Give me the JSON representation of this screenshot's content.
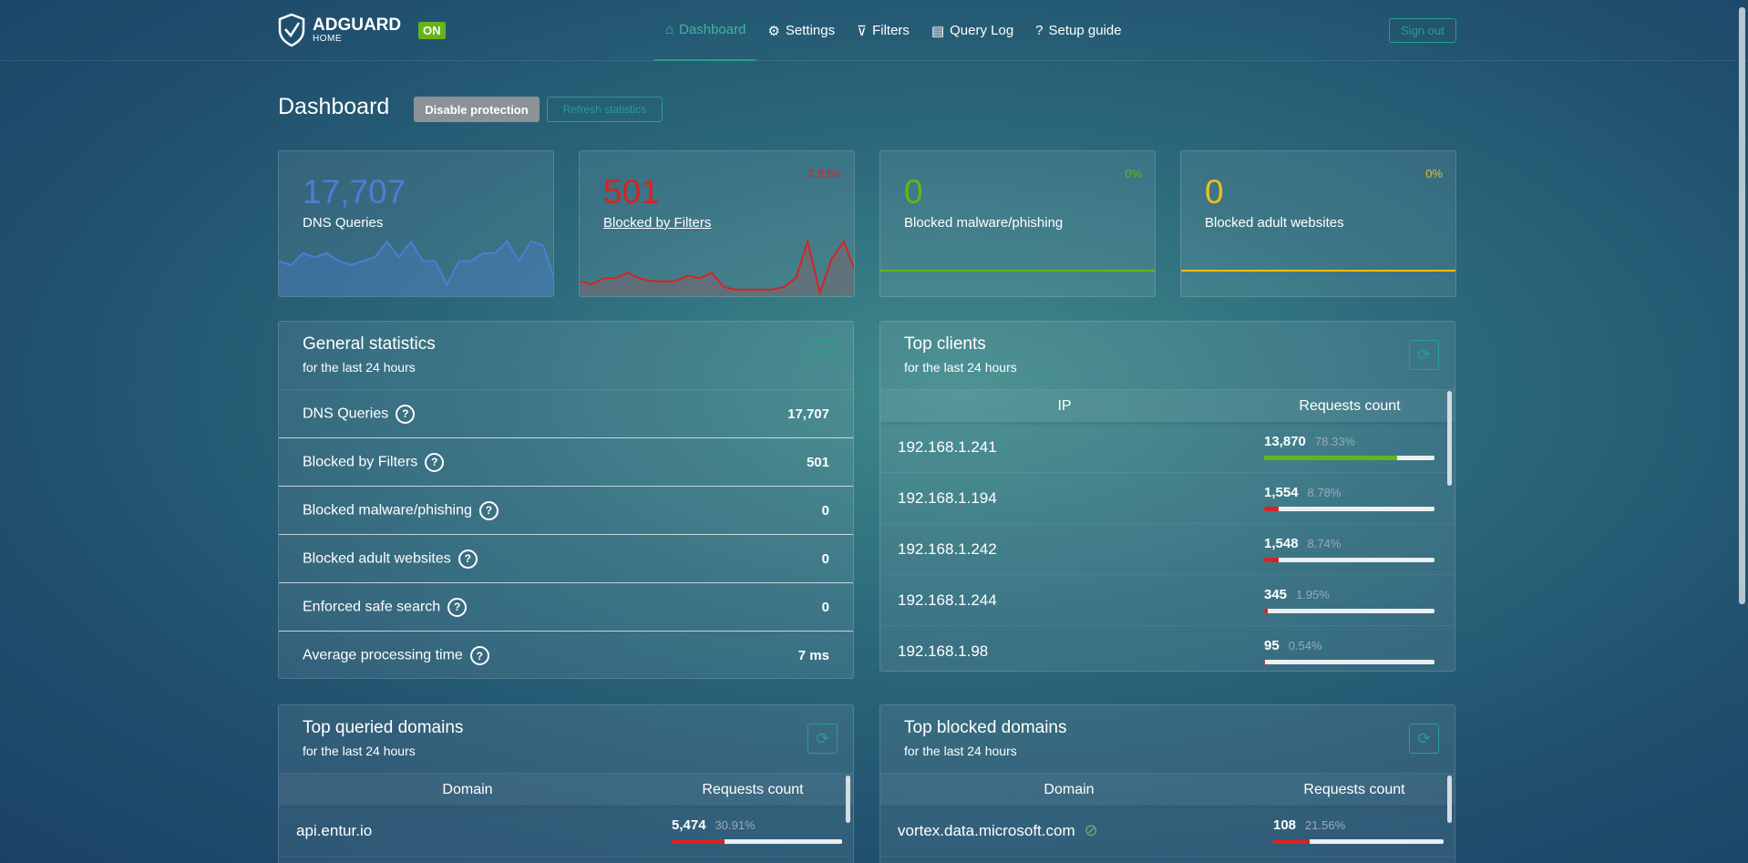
{
  "header": {
    "brand": "ADGUARD",
    "brand_sub": "HOME",
    "status_badge": "ON",
    "nav": [
      {
        "label": "Dashboard",
        "icon": "home-icon",
        "active": true
      },
      {
        "label": "Settings",
        "icon": "gear-icon"
      },
      {
        "label": "Filters",
        "icon": "filter-icon"
      },
      {
        "label": "Query Log",
        "icon": "document-icon"
      },
      {
        "label": "Setup guide",
        "icon": "help-icon"
      }
    ],
    "sign_out": "Sign out"
  },
  "page": {
    "title": "Dashboard",
    "disable_protection": "Disable protection",
    "refresh_statistics": "Refresh statistics"
  },
  "stat_cards": [
    {
      "value": "17,707",
      "label": "DNS Queries",
      "percent": "",
      "color": "#4a7fd4",
      "series": [
        8,
        7,
        10,
        9,
        10,
        8,
        7,
        8,
        9,
        13,
        9,
        13,
        8,
        8,
        2,
        8,
        8,
        10,
        10,
        13,
        8,
        13,
        12,
        3
      ]
    },
    {
      "value": "501",
      "label": "Blocked by Filters",
      "percent": "2.83%",
      "color": "#d72323",
      "series": [
        4,
        3,
        5,
        5,
        7,
        5,
        4,
        4,
        4,
        6,
        5,
        7,
        2,
        1,
        1,
        1,
        1,
        2,
        5,
        18,
        0,
        12,
        18,
        7
      ]
    },
    {
      "value": "0",
      "label": "Blocked malware/phishing",
      "percent": "0%",
      "color": "#67b31b",
      "series": [
        0,
        0
      ]
    },
    {
      "value": "0",
      "label": "Blocked adult websites",
      "percent": "0%",
      "color": "#f0be16",
      "series": [
        0,
        0
      ]
    }
  ],
  "general": {
    "title": "General statistics",
    "subtitle": "for the last 24 hours",
    "rows": [
      {
        "label": "DNS Queries",
        "value": "17,707"
      },
      {
        "label": "Blocked by Filters",
        "value": "501"
      },
      {
        "label": "Blocked malware/phishing",
        "value": "0"
      },
      {
        "label": "Blocked adult websites",
        "value": "0"
      },
      {
        "label": "Enforced safe search",
        "value": "0"
      },
      {
        "label": "Average processing time",
        "value": "7 ms"
      }
    ]
  },
  "top_clients": {
    "title": "Top clients",
    "subtitle": "for the last 24 hours",
    "col_ip": "IP",
    "col_count": "Requests count",
    "rows": [
      {
        "ip": "192.168.1.241",
        "count": "13,870",
        "percent": "78.33%",
        "fill": 78.33,
        "color": "#67b31b"
      },
      {
        "ip": "192.168.1.194",
        "count": "1,554",
        "percent": "8.78%",
        "fill": 8.78,
        "color": "#d72323"
      },
      {
        "ip": "192.168.1.242",
        "count": "1,548",
        "percent": "8.74%",
        "fill": 8.74,
        "color": "#d72323"
      },
      {
        "ip": "192.168.1.244",
        "count": "345",
        "percent": "1.95%",
        "fill": 1.95,
        "color": "#d72323"
      },
      {
        "ip": "192.168.1.98",
        "count": "95",
        "percent": "0.54%",
        "fill": 0.54,
        "color": "#d72323"
      }
    ]
  },
  "top_queried": {
    "title": "Top queried domains",
    "subtitle": "for the last 24 hours",
    "col_domain": "Domain",
    "col_count": "Requests count",
    "rows": [
      {
        "domain": "api.entur.io",
        "count": "5,474",
        "percent": "30.91%",
        "fill": 30.91,
        "color": "#d72323"
      }
    ]
  },
  "top_blocked": {
    "title": "Top blocked domains",
    "subtitle": "for the last 24 hours",
    "col_domain": "Domain",
    "col_count": "Requests count",
    "rows": [
      {
        "domain": "vortex.data.microsoft.com",
        "count": "108",
        "percent": "21.56%",
        "fill": 21.56,
        "color": "#d72323",
        "icon": "eye-slash-icon"
      }
    ]
  }
}
